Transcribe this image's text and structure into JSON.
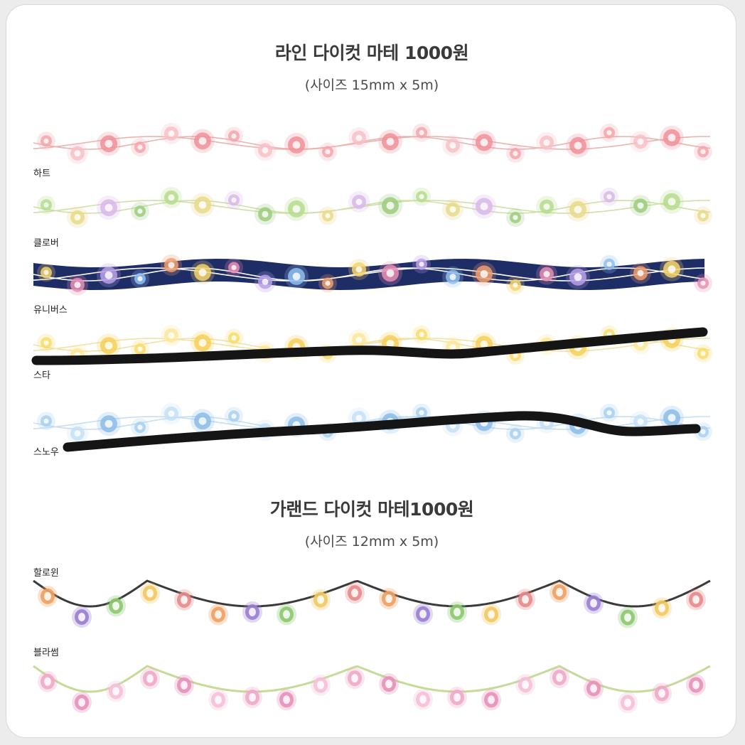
{
  "section1": {
    "title": "라인 다이컷 마테 1000원",
    "subtitle": "(사이즈 15mm x 5m)",
    "items": [
      {
        "label": "하트",
        "wire": "#eab4b0",
        "bg": "",
        "dots": [
          "#f4a4ac",
          "#f7c1c6",
          "#f09098"
        ]
      },
      {
        "label": "클로버",
        "wire": "#cfe0a8",
        "bg": "",
        "dots": [
          "#b6dc8e",
          "#e9d98a",
          "#d8b9e8",
          "#9ccc7e"
        ]
      },
      {
        "label": "유니버스",
        "wire": "#ffffff",
        "bg": "#1f2d66",
        "dots": [
          "#f5d36b",
          "#e88fb3",
          "#b8a0e8",
          "#8fc0f0",
          "#f0a070"
        ]
      },
      {
        "label": "스타",
        "wire": "#f0e2a8",
        "bg": "",
        "dots": [
          "#f8dc6a",
          "#fbe79a",
          "#f6cf58"
        ]
      },
      {
        "label": "스노우",
        "wire": "#c6dff2",
        "bg": "",
        "dots": [
          "#a8d0f0",
          "#c4e0f6",
          "#8cbce8"
        ]
      }
    ]
  },
  "section2": {
    "title": "가랜드 다이컷 마테1000원",
    "subtitle": "(사이즈 12mm x 5m)",
    "items": [
      {
        "label": "할로윈",
        "wire": "#3a3a3a",
        "dots": [
          "#f0a060",
          "#9a7fd0",
          "#8cc870",
          "#f4c860",
          "#e88888"
        ]
      },
      {
        "label": "블라썸",
        "wire": "#c4dc98",
        "dots": [
          "#f0a8c8",
          "#e890b8",
          "#f6c0d8"
        ]
      }
    ]
  }
}
